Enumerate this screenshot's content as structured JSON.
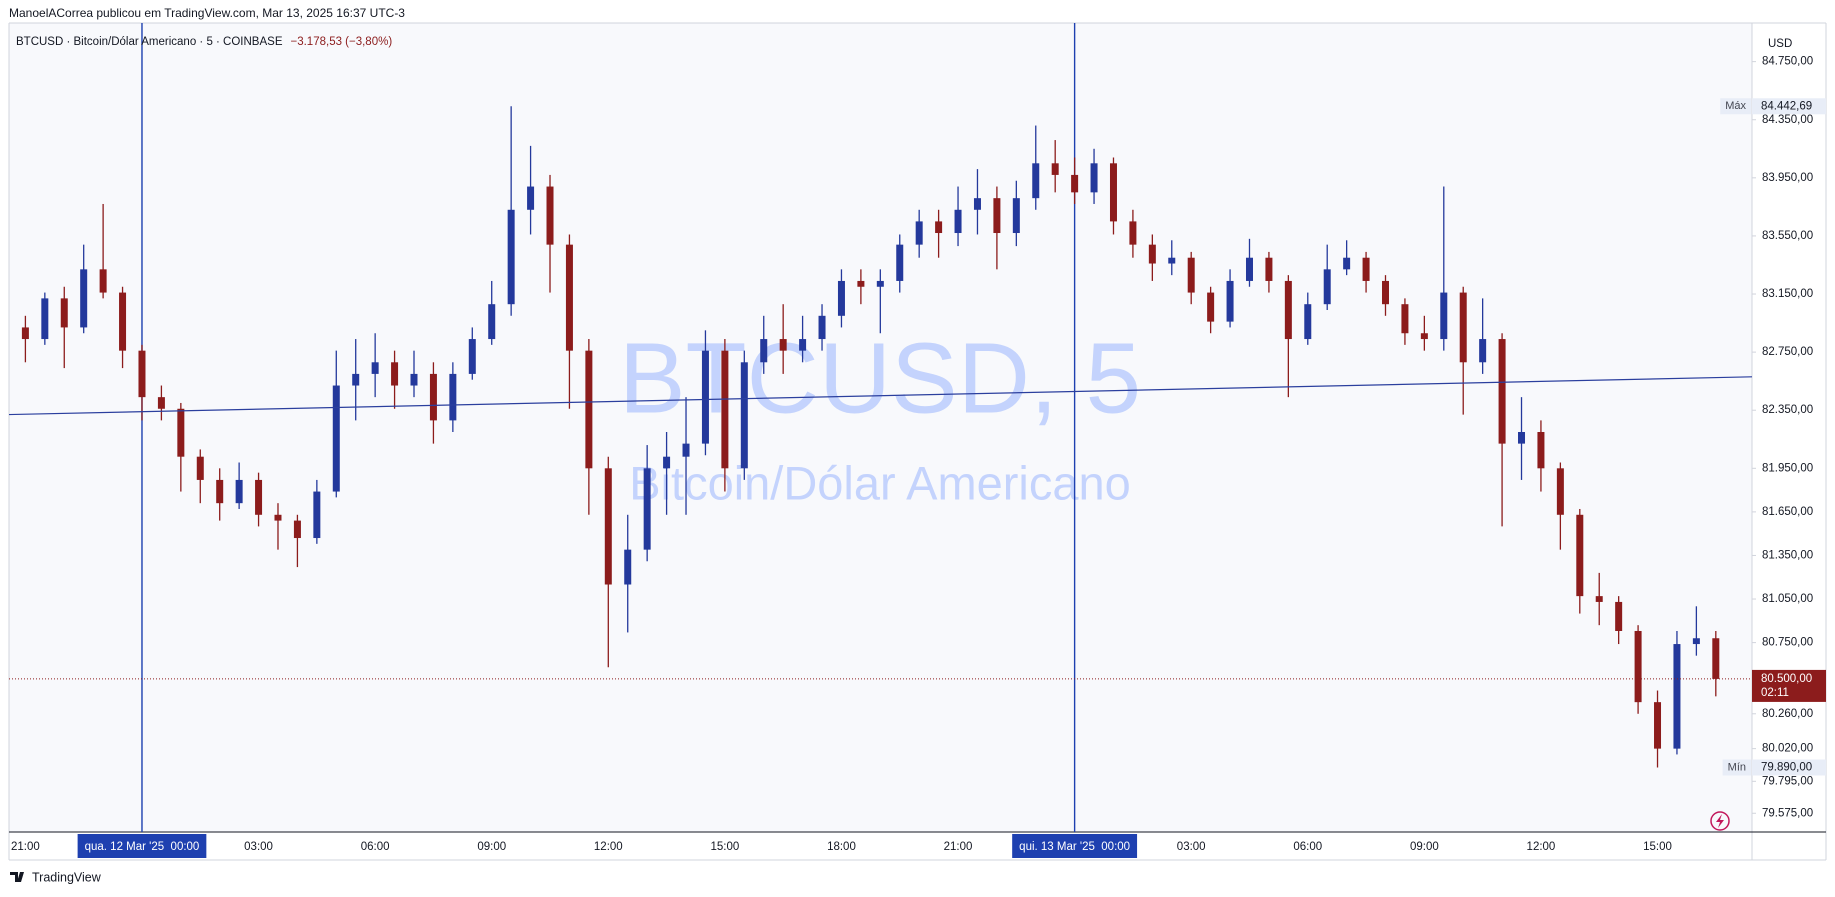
{
  "header": "ManoelACorrea publicou em TradingView.com, Mar 13, 2025 16:37 UTC-3",
  "footer": "TradingView",
  "chart_data": {
    "type": "candlestick",
    "title": "BTCUSD · Bitcoin/Dólar Americano · 5 · COINBASE",
    "change": "−3.178,53 (−3,80%)",
    "watermark": "BTCUSD, 5",
    "watermark_subtitle": "Bitcoin/Dólar Americano",
    "currency": "USD",
    "up_color": "#24399c",
    "down_color": "#8c1c1c",
    "grid": false,
    "categories": [
      "21:00",
      null,
      null,
      null,
      null,
      null,
      "qua. 12 Mar '25  00:00",
      null,
      null,
      null,
      null,
      null,
      "03:00",
      null,
      null,
      null,
      null,
      null,
      "06:00",
      null,
      null,
      null,
      null,
      null,
      "09:00",
      null,
      null,
      null,
      null,
      null,
      "12:00",
      null,
      null,
      null,
      null,
      null,
      "15:00",
      null,
      null,
      null,
      null,
      null,
      "18:00",
      null,
      null,
      null,
      null,
      null,
      "21:00",
      null,
      null,
      null,
      null,
      null,
      "qui. 13 Mar '25  00:00",
      null,
      null,
      null,
      null,
      null,
      "03:00",
      null,
      null,
      null,
      null,
      null,
      "06:00",
      null,
      null,
      null,
      null,
      null,
      "09:00",
      null,
      null,
      null,
      null,
      null,
      "12:00",
      null,
      null,
      null,
      null,
      null,
      "15:00",
      null,
      null,
      null
    ],
    "values": [
      [
        82920,
        83000,
        82680,
        82840
      ],
      [
        82840,
        83160,
        82800,
        83120
      ],
      [
        83120,
        83200,
        82640,
        82920
      ],
      [
        82920,
        83490,
        82880,
        83320
      ],
      [
        83320,
        83770,
        83120,
        83160
      ],
      [
        83160,
        83200,
        82640,
        82760
      ],
      [
        82760,
        82800,
        82280,
        82440
      ],
      [
        82440,
        82520,
        82280,
        82360
      ],
      [
        82360,
        82400,
        81790,
        82030
      ],
      [
        82030,
        82080,
        81710,
        81870
      ],
      [
        81870,
        81950,
        81590,
        81710
      ],
      [
        81710,
        81990,
        81670,
        81870
      ],
      [
        81870,
        81920,
        81550,
        81630
      ],
      [
        81630,
        81710,
        81390,
        81590
      ],
      [
        81590,
        81630,
        81270,
        81470
      ],
      [
        81470,
        81870,
        81430,
        81790
      ],
      [
        81790,
        82760,
        81750,
        82520
      ],
      [
        82520,
        82840,
        82280,
        82600
      ],
      [
        82600,
        82880,
        82440,
        82680
      ],
      [
        82680,
        82760,
        82360,
        82520
      ],
      [
        82520,
        82760,
        82440,
        82600
      ],
      [
        82600,
        82680,
        82120,
        82280
      ],
      [
        82280,
        82680,
        82200,
        82600
      ],
      [
        82600,
        82920,
        82560,
        82840
      ],
      [
        82840,
        83240,
        82800,
        83080
      ],
      [
        83080,
        84442.69,
        83000,
        83730
      ],
      [
        83730,
        84170,
        83560,
        83890
      ],
      [
        83890,
        83970,
        83160,
        83490
      ],
      [
        83490,
        83560,
        82360,
        82760
      ],
      [
        82760,
        82840,
        81630,
        81950
      ],
      [
        81950,
        82030,
        80580,
        81150
      ],
      [
        81150,
        81630,
        80820,
        81390
      ],
      [
        81390,
        82110,
        81310,
        81950
      ],
      [
        81950,
        82200,
        81630,
        82030
      ],
      [
        82030,
        82440,
        81630,
        82120
      ],
      [
        82120,
        82900,
        82040,
        82760
      ],
      [
        82760,
        82840,
        81790,
        81950
      ],
      [
        81950,
        82760,
        81870,
        82680
      ],
      [
        82680,
        83000,
        82600,
        82840
      ],
      [
        82840,
        83080,
        82600,
        82760
      ],
      [
        82760,
        83000,
        82680,
        82840
      ],
      [
        82840,
        83080,
        82760,
        83000
      ],
      [
        83000,
        83320,
        82920,
        83240
      ],
      [
        83240,
        83320,
        83080,
        83200
      ],
      [
        83200,
        83320,
        82880,
        83240
      ],
      [
        83240,
        83560,
        83160,
        83490
      ],
      [
        83490,
        83730,
        83400,
        83650
      ],
      [
        83650,
        83730,
        83400,
        83570
      ],
      [
        83570,
        83890,
        83480,
        83730
      ],
      [
        83730,
        84010,
        83560,
        83810
      ],
      [
        83810,
        83890,
        83320,
        83570
      ],
      [
        83570,
        83930,
        83480,
        83810
      ],
      [
        83810,
        84310,
        83730,
        84050
      ],
      [
        84050,
        84210,
        83850,
        83970
      ],
      [
        83970,
        84090,
        83770,
        83850
      ],
      [
        83850,
        84150,
        83770,
        84050
      ],
      [
        84050,
        84090,
        83560,
        83650
      ],
      [
        83650,
        83730,
        83400,
        83490
      ],
      [
        83490,
        83560,
        83240,
        83360
      ],
      [
        83360,
        83520,
        83280,
        83400
      ],
      [
        83400,
        83440,
        83080,
        83160
      ],
      [
        83160,
        83200,
        82880,
        82960
      ],
      [
        82960,
        83320,
        82920,
        83240
      ],
      [
        83240,
        83530,
        83200,
        83400
      ],
      [
        83400,
        83440,
        83160,
        83240
      ],
      [
        83240,
        83280,
        82440,
        82840
      ],
      [
        82840,
        83160,
        82800,
        83080
      ],
      [
        83080,
        83490,
        83040,
        83320
      ],
      [
        83320,
        83520,
        83280,
        83400
      ],
      [
        83400,
        83440,
        83160,
        83240
      ],
      [
        83240,
        83280,
        83000,
        83080
      ],
      [
        83080,
        83120,
        82800,
        82880
      ],
      [
        82880,
        83000,
        82760,
        82840
      ],
      [
        82840,
        83890,
        82760,
        83160
      ],
      [
        83160,
        83200,
        82320,
        82680
      ],
      [
        82680,
        83120,
        82600,
        82840
      ],
      [
        82840,
        82880,
        81550,
        82120
      ],
      [
        82120,
        82440,
        81870,
        82200
      ],
      [
        82200,
        82280,
        81790,
        81950
      ],
      [
        81950,
        81990,
        81390,
        81630
      ],
      [
        81630,
        81670,
        80950,
        81070
      ],
      [
        81070,
        81230,
        80870,
        81030
      ],
      [
        81030,
        81070,
        80740,
        80830
      ],
      [
        80830,
        80870,
        80260,
        80340
      ],
      [
        80340,
        80420,
        79890,
        80020
      ],
      [
        80020,
        80830,
        79980,
        80740
      ],
      [
        80740,
        81000,
        80660,
        80780
      ],
      [
        80780,
        80830,
        80380,
        80500
      ]
    ],
    "ylim": [
      79446,
      85016
    ],
    "yticks": [
      {
        "value": 84750,
        "label": "84.750,00"
      },
      {
        "value": 84350,
        "label": "84.350,00"
      },
      {
        "value": 83950,
        "label": "83.950,00"
      },
      {
        "value": 83550,
        "label": "83.550,00"
      },
      {
        "value": 83150,
        "label": "83.150,00"
      },
      {
        "value": 82750,
        "label": "82.750,00"
      },
      {
        "value": 82350,
        "label": "82.350,00"
      },
      {
        "value": 81950,
        "label": "81.950,00"
      },
      {
        "value": 81650,
        "label": "81.650,00"
      },
      {
        "value": 81350,
        "label": "81.350,00"
      },
      {
        "value": 81050,
        "label": "81.050,00"
      },
      {
        "value": 80750,
        "label": "80.750,00"
      },
      {
        "value": 80260,
        "label": "80.260,00"
      },
      {
        "value": 80020,
        "label": "80.020,00"
      },
      {
        "value": 79795,
        "label": "79.795,00"
      },
      {
        "value": 79575,
        "label": "79.575,00"
      }
    ],
    "price_labels": [
      {
        "label": "Máx",
        "value": 84442.69,
        "value_label": "84.442,69"
      },
      {
        "label": "Mín",
        "value": 79890,
        "value_label": "79.890,00"
      }
    ],
    "last_price": {
      "value": 80500,
      "value_label": "80.500,00",
      "countdown": "02:11",
      "color": "#8c1c1c"
    },
    "trend_line": {
      "values": [
        82320,
        82580
      ],
      "color": "#2b3f9e"
    }
  }
}
